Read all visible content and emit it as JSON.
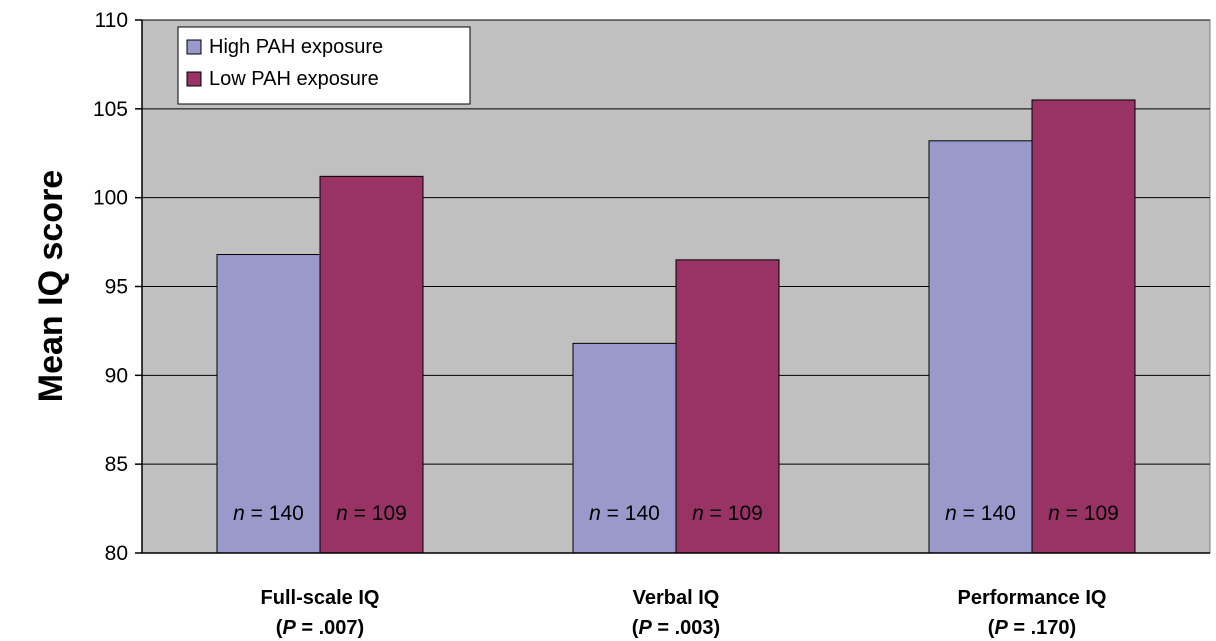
{
  "chart_data": {
    "type": "bar",
    "ylabel": "Mean IQ score",
    "xlabel": "",
    "ylim": [
      80,
      110
    ],
    "yticks": [
      80,
      85,
      90,
      95,
      100,
      105,
      110
    ],
    "grid": true,
    "legend_position": "top-left",
    "categories": [
      {
        "name": "Full-scale IQ",
        "p_prefix": "(",
        "p_symbol": "P",
        "p_value": " = .007)"
      },
      {
        "name": "Verbal IQ",
        "p_prefix": "(",
        "p_symbol": "P",
        "p_value": " = .003)"
      },
      {
        "name": "Performance IQ",
        "p_prefix": "(",
        "p_symbol": "P",
        "p_value": " = .170)"
      }
    ],
    "series": [
      {
        "name": "High PAH exposure",
        "color": "#9999cc",
        "values": [
          96.8,
          91.8,
          103.2
        ],
        "n_labels": [
          {
            "symbol": "n",
            "text": " = 140"
          },
          {
            "symbol": "n",
            "text": " = 140"
          },
          {
            "symbol": "n",
            "text": " = 140"
          }
        ]
      },
      {
        "name": "Low PAH exposure",
        "color": "#993366",
        "values": [
          101.2,
          96.5,
          105.5
        ],
        "n_labels": [
          {
            "symbol": "n",
            "text": " = 109"
          },
          {
            "symbol": "n",
            "text": " = 109"
          },
          {
            "symbol": "n",
            "text": " = 109"
          }
        ]
      }
    ],
    "plot_background": "#c0c0c0"
  }
}
